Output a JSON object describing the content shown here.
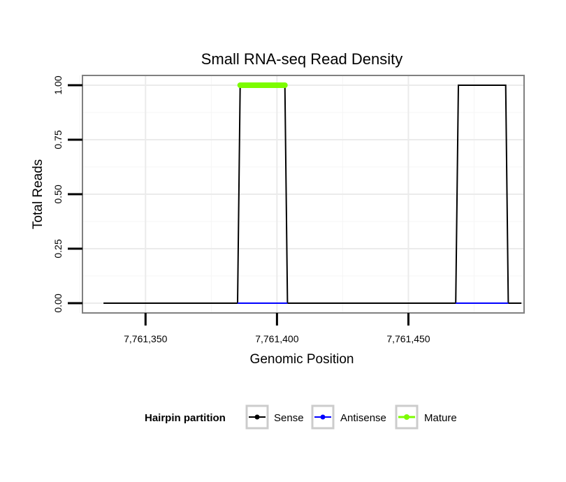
{
  "chart_data": {
    "type": "line",
    "title": "Small RNA-seq Read Density",
    "xlabel": "Genomic Position",
    "ylabel": "Total Reads",
    "xlim": [
      7761326,
      7761494
    ],
    "ylim": [
      -0.045,
      1.045
    ],
    "x_ticks": [
      7761350,
      7761400,
      7761450
    ],
    "x_tick_labels": [
      "7,761,350",
      "7,761,400",
      "7,761,450"
    ],
    "y_ticks": [
      0,
      0.25,
      0.5,
      0.75,
      1.0
    ],
    "y_tick_labels": [
      "0.00",
      "0.25",
      "0.50",
      "0.75",
      "1.00"
    ],
    "grid": true,
    "legend": {
      "title": "Hairpin partition",
      "position": "bottom",
      "entries": [
        {
          "label": "Sense",
          "color": "#000000"
        },
        {
          "label": "Antisense",
          "color": "#0000ff"
        },
        {
          "label": "Mature",
          "color": "#7cfc00"
        }
      ]
    },
    "series": [
      {
        "name": "Sense",
        "color": "#000000",
        "x": [
          7761334,
          7761385,
          7761386,
          7761403,
          7761404,
          7761468,
          7761469,
          7761487,
          7761488,
          7761493
        ],
        "y": [
          0,
          0,
          1,
          1,
          0,
          0,
          1,
          1,
          0,
          0
        ]
      },
      {
        "name": "Antisense",
        "color": "#0000ff",
        "x": [
          7761385,
          7761404
        ],
        "y": [
          0,
          0
        ]
      },
      {
        "name": "Antisense",
        "color": "#0000ff",
        "x": [
          7761468,
          7761488
        ],
        "y": [
          0,
          0
        ]
      },
      {
        "name": "Mature",
        "color": "#7cfc00",
        "x": [
          7761386,
          7761403
        ],
        "y": [
          1,
          1
        ]
      }
    ]
  }
}
